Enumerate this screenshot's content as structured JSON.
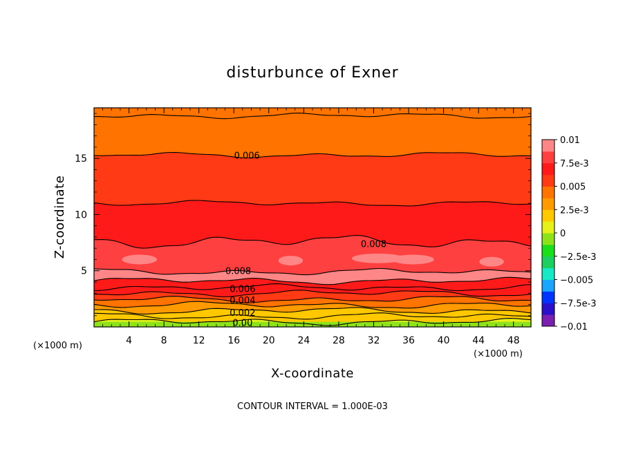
{
  "chart_data": {
    "type": "heatmap",
    "title": "disturbunce of Exner",
    "xlabel": "X-coordinate",
    "ylabel": "Z-coordinate",
    "x_unit": "(×1000 m)",
    "x_unit_right": "(×1000 m)",
    "xlim": [
      0,
      50
    ],
    "ylim": [
      0,
      19.5
    ],
    "x_ticks": [
      4,
      8,
      12,
      16,
      20,
      24,
      28,
      32,
      36,
      40,
      44,
      48
    ],
    "y_ticks": [
      5,
      10,
      15
    ],
    "contour_interval_text": "CONTOUR INTERVAL = 1.000E-03",
    "colorbar": {
      "min": -0.01,
      "max": 0.01,
      "tick_values": [
        0.01,
        0.0075,
        0.005,
        0.0025,
        0,
        -0.0025,
        -0.005,
        -0.0075,
        -0.01
      ],
      "tick_labels": [
        "0.01",
        "7.5e-3",
        "0.005",
        "2.5e-3",
        "0",
        "−2.5e-3",
        "−0.005",
        "−7.5e-3",
        "−0.01"
      ],
      "colors": [
        "#7a1fb0",
        "#2a10c8",
        "#0033ff",
        "#1aa5ff",
        "#17e8c6",
        "#1ccf5f",
        "#1adf1a",
        "#8ee21a",
        "#e6f01a",
        "#ffc800",
        "#ff9a00",
        "#ff7300",
        "#ff3a14",
        "#ff1a1a",
        "#ff4040",
        "#ff8686"
      ]
    },
    "contour_labels": [
      {
        "text": "0.006",
        "x": 17.5,
        "z": 15.3
      },
      {
        "text": "0.008",
        "x": 32.0,
        "z": 7.4
      },
      {
        "text": "0.008",
        "x": 16.5,
        "z": 5.0
      },
      {
        "text": "0.006",
        "x": 17.0,
        "z": 3.4
      },
      {
        "text": "0.004",
        "x": 17.0,
        "z": 2.4
      },
      {
        "text": "0.002",
        "x": 17.0,
        "z": 1.3
      },
      {
        "text": "0.00",
        "x": 17.0,
        "z": 0.4
      }
    ],
    "contour_levels": [
      {
        "level": 0.0,
        "z": 0.45
      },
      {
        "level": 0.001,
        "z": 0.95
      },
      {
        "level": 0.002,
        "z": 1.45
      },
      {
        "level": 0.003,
        "z": 1.95
      },
      {
        "level": 0.004,
        "z": 2.45
      },
      {
        "level": 0.005,
        "z": 3.0
      },
      {
        "level": 0.006,
        "z": 3.5
      },
      {
        "level": 0.007,
        "z": 4.1
      },
      {
        "level": 0.008,
        "z": 4.9
      },
      {
        "level": 0.008,
        "z": 7.6
      },
      {
        "level": 0.007,
        "z": 11.0
      },
      {
        "level": 0.006,
        "z": 15.3
      },
      {
        "level": 0.005,
        "z": 18.8
      }
    ]
  }
}
